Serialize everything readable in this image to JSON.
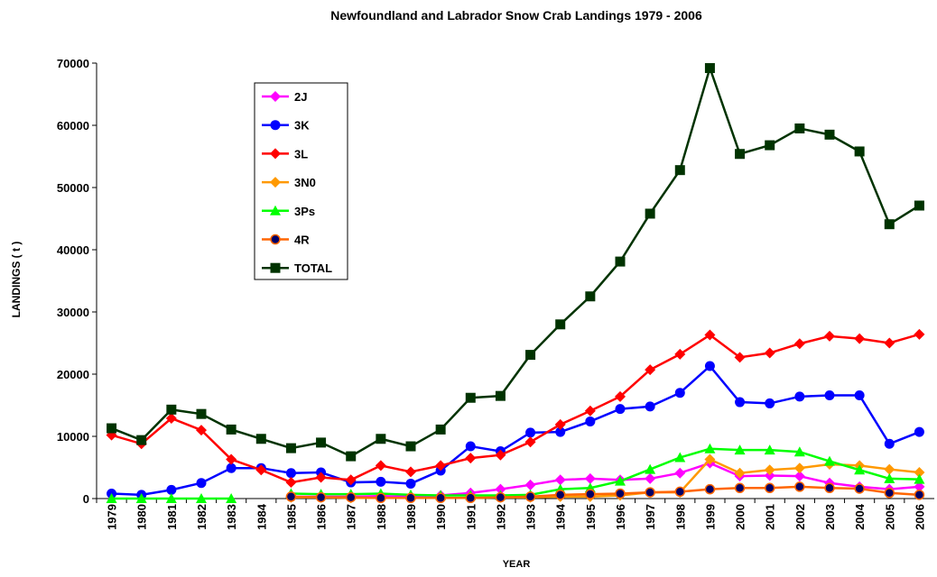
{
  "chart_data": {
    "type": "line",
    "title": "Newfoundland and Labrador Snow Crab Landings 1979 - 2006",
    "x_label": "YEAR",
    "y_label": "LANDINGS ( t )",
    "categories": [
      "1979",
      "1980",
      "1981",
      "1982",
      "1983",
      "1984",
      "1985",
      "1986",
      "1987",
      "1988",
      "1989",
      "1990",
      "1991",
      "1992",
      "1993",
      "1994",
      "1995",
      "1996",
      "1997",
      "1998",
      "1999",
      "2000",
      "2001",
      "2002",
      "2003",
      "2004",
      "2005",
      "2006"
    ],
    "ylim": [
      0,
      70000
    ],
    "yticks": [
      0,
      10000,
      20000,
      30000,
      40000,
      50000,
      60000,
      70000
    ],
    "series": [
      {
        "name": "2J",
        "color": "#ff00ff",
        "marker": "diamond",
        "values": [
          null,
          null,
          null,
          null,
          null,
          null,
          300,
          300,
          300,
          400,
          300,
          500,
          900,
          1500,
          2200,
          3000,
          3200,
          3000,
          3200,
          4100,
          5700,
          3600,
          3700,
          3600,
          2500,
          1900,
          1500,
          1900
        ]
      },
      {
        "name": "3K",
        "color": "#0000ff",
        "marker": "circle",
        "values": [
          800,
          600,
          1400,
          2500,
          4900,
          4900,
          4100,
          4200,
          2600,
          2700,
          2400,
          4500,
          8400,
          7600,
          10600,
          10700,
          12400,
          14400,
          14800,
          17000,
          21300,
          15500,
          15300,
          16400,
          16600,
          16600,
          8800,
          10700
        ]
      },
      {
        "name": "3L",
        "color": "#ff0000",
        "marker": "diamond",
        "values": [
          10200,
          8800,
          12900,
          11000,
          6300,
          4600,
          2600,
          3400,
          3000,
          5300,
          4300,
          5300,
          6500,
          7000,
          9100,
          11900,
          14100,
          16400,
          20700,
          23200,
          26300,
          22700,
          23400,
          24900,
          26100,
          25700,
          25000,
          26400
        ]
      },
      {
        "name": "3N0",
        "color": "#ff9900",
        "marker": "diamond",
        "values": [
          null,
          null,
          null,
          null,
          null,
          null,
          200,
          200,
          100,
          100,
          100,
          100,
          100,
          200,
          200,
          300,
          300,
          500,
          1000,
          1000,
          6300,
          4100,
          4600,
          4900,
          5500,
          5300,
          4700,
          4200
        ]
      },
      {
        "name": "3Ps",
        "color": "#00ff00",
        "marker": "triangle",
        "values": [
          0,
          0,
          0,
          0,
          0,
          null,
          800,
          700,
          700,
          800,
          600,
          500,
          500,
          500,
          600,
          1500,
          1700,
          2800,
          4700,
          6600,
          8000,
          7800,
          7800,
          7500,
          6000,
          4600,
          3200,
          3100
        ]
      },
      {
        "name": "4R",
        "color": "#ff6600",
        "marker": "circle-dark",
        "values": [
          null,
          null,
          null,
          null,
          null,
          null,
          300,
          200,
          200,
          100,
          100,
          100,
          100,
          200,
          300,
          600,
          700,
          800,
          1000,
          1100,
          1500,
          1700,
          1700,
          1900,
          1700,
          1600,
          900,
          600
        ]
      },
      {
        "name": "TOTAL",
        "color": "#003300",
        "marker": "square",
        "values": [
          11300,
          9400,
          14300,
          13600,
          11100,
          9600,
          8100,
          9000,
          6800,
          9600,
          8400,
          11100,
          16200,
          16500,
          23100,
          28000,
          32500,
          38100,
          45800,
          52800,
          69200,
          55400,
          56800,
          59500,
          58500,
          55800,
          44100,
          47100
        ]
      }
    ]
  }
}
